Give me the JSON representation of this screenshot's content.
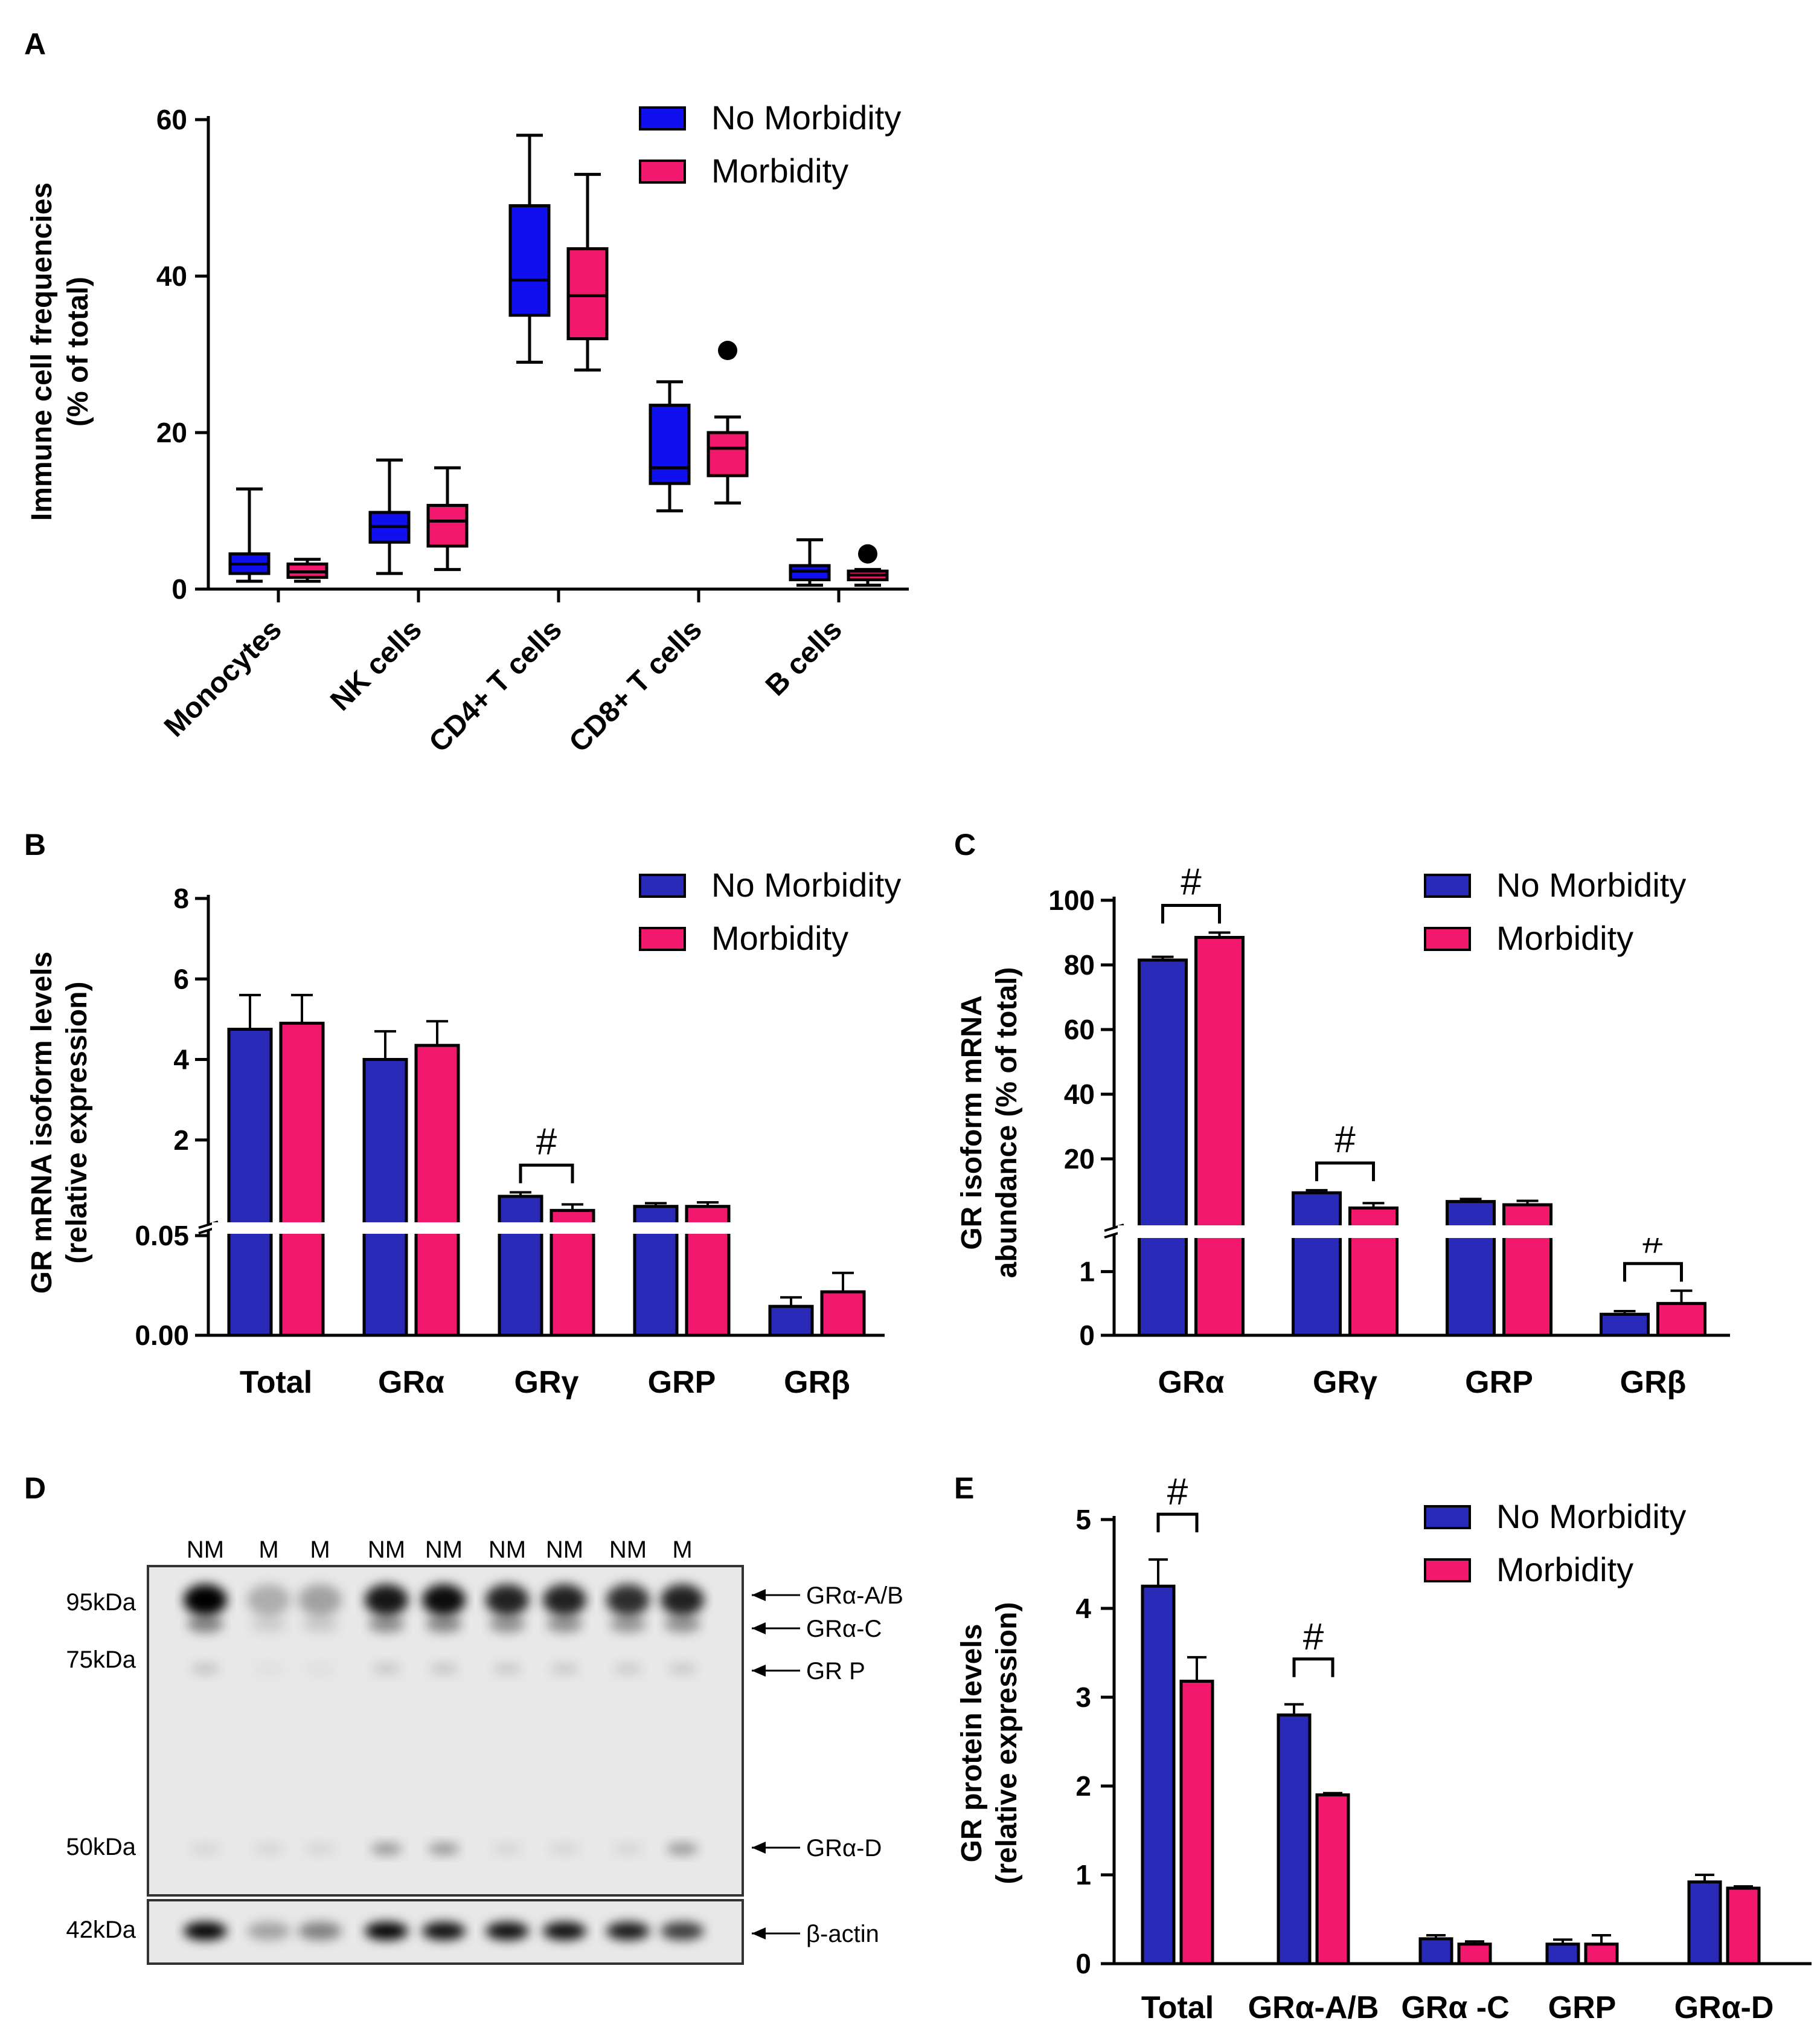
{
  "colors": {
    "no_morbidity_box": "#1010ee",
    "no_morbidity_bar": "#2a2ab8",
    "morbidity": "#f2186e",
    "axis": "#000000",
    "blot_bg": "#e8e8e8"
  },
  "legend": {
    "no_morbidity": "No Morbidity",
    "morbidity": "Morbidity"
  },
  "chart_data": [
    {
      "panel": "A",
      "type": "box",
      "ylabel": [
        "Immune cell frequencies",
        "(% of total)"
      ],
      "yticks": [
        "0",
        "20",
        "40",
        "60"
      ],
      "ylim": [
        0,
        60
      ],
      "categories": [
        "Monocytes",
        "NK cells",
        "CD4+ T cells",
        "CD8+ T cells",
        "B cells"
      ],
      "series": [
        {
          "name": "No Morbidity",
          "boxes": [
            {
              "min": 1,
              "q1": 2,
              "median": 3.2,
              "q3": 4.5,
              "max": 12.8
            },
            {
              "min": 2,
              "q1": 6,
              "median": 8,
              "q3": 9.8,
              "max": 16.5
            },
            {
              "min": 29,
              "q1": 35,
              "median": 39.5,
              "q3": 49,
              "max": 58
            },
            {
              "min": 10,
              "q1": 13.5,
              "median": 15.5,
              "q3": 23.5,
              "max": 26.5
            },
            {
              "min": 0.5,
              "q1": 1.2,
              "median": 2.3,
              "q3": 3,
              "max": 6.3
            }
          ]
        },
        {
          "name": "Morbidity",
          "boxes": [
            {
              "min": 1,
              "q1": 1.5,
              "median": 2.2,
              "q3": 3.2,
              "max": 3.8
            },
            {
              "min": 2.5,
              "q1": 5.5,
              "median": 8.7,
              "q3": 10.7,
              "max": 15.5
            },
            {
              "min": 28,
              "q1": 32,
              "median": 37.5,
              "q3": 43.5,
              "max": 53
            },
            {
              "min": 11,
              "q1": 14.5,
              "median": 18,
              "q3": 20,
              "max": 22,
              "outliers": [
                30.5
              ]
            },
            {
              "min": 0.5,
              "q1": 1.2,
              "median": 1.8,
              "q3": 2.3,
              "max": 2.5,
              "outliers": [
                4.5
              ]
            }
          ]
        }
      ]
    },
    {
      "panel": "B",
      "type": "bar",
      "ylabel": [
        "GR mRNA isoform levels",
        "(relative expression)"
      ],
      "upper_ticks": [
        "2",
        "4",
        "6",
        "8"
      ],
      "lower_ticks": [
        "0.00",
        "0.05"
      ],
      "categories": [
        "Total",
        "GRα",
        "GRγ",
        "GRP",
        "GRβ"
      ],
      "significance": [
        "",
        "",
        "#",
        "",
        ""
      ],
      "series": [
        {
          "name": "No Morbidity",
          "values": [
            4.75,
            4.0,
            0.6,
            0.35,
            0.0145
          ],
          "errors": [
            0.85,
            0.7,
            0.1,
            0.08,
            0.0045
          ]
        },
        {
          "name": "Morbidity",
          "values": [
            4.9,
            4.35,
            0.25,
            0.35,
            0.0218
          ],
          "errors": [
            0.7,
            0.6,
            0.15,
            0.1,
            0.0095
          ]
        }
      ]
    },
    {
      "panel": "C",
      "type": "bar",
      "ylabel": [
        "GR isoform mRNA",
        "abundance (% of total)"
      ],
      "upper_ticks": [
        "20",
        "40",
        "60",
        "80",
        "100"
      ],
      "lower_ticks": [
        "0",
        "1"
      ],
      "categories": [
        "GRα",
        "GRγ",
        "GRP",
        "GRβ"
      ],
      "significance": [
        "#",
        "#",
        "",
        "#"
      ],
      "series": [
        {
          "name": "No Morbidity",
          "values": [
            81.5,
            9.5,
            6.8,
            0.33
          ],
          "errors": [
            1,
            0.8,
            0.8,
            0.05
          ]
        },
        {
          "name": "Morbidity",
          "values": [
            88.5,
            4.8,
            5.8,
            0.5
          ],
          "errors": [
            1.5,
            1.5,
            1.2,
            0.2
          ]
        }
      ]
    },
    {
      "panel": "D",
      "type": "western_blot",
      "lanes": [
        "NM",
        "M",
        "M",
        "NM",
        "NM",
        "NM",
        "NM",
        "NM",
        "M"
      ],
      "markers": [
        "95kDa",
        "75kDa",
        "50kDa",
        "42kDa"
      ],
      "bands": [
        "GRα-A/B",
        "GRα-C",
        "GR P",
        "GRα-D",
        "β-actin"
      ],
      "band_intensity_rel": {
        "GRα-A/B": [
          1,
          0.25,
          0.3,
          0.9,
          0.95,
          0.85,
          0.85,
          0.8,
          0.85
        ],
        "β-actin": [
          1,
          0.3,
          0.45,
          1,
          0.95,
          0.95,
          0.95,
          0.9,
          0.75
        ]
      }
    },
    {
      "panel": "E",
      "type": "bar",
      "ylabel": [
        "GR protein levels",
        "(relative expression)"
      ],
      "yticks": [
        "0",
        "1",
        "2",
        "3",
        "4",
        "5"
      ],
      "ylim": [
        0,
        5
      ],
      "categories": [
        "Total",
        "GRα-A/B",
        "GRα -C",
        "GRP",
        "GRα-D"
      ],
      "significance": [
        "#",
        "#",
        "",
        "",
        ""
      ],
      "series": [
        {
          "name": "No Morbidity",
          "values": [
            4.25,
            2.8,
            0.28,
            0.22,
            0.92
          ],
          "errors": [
            0.3,
            0.12,
            0.04,
            0.05,
            0.08
          ]
        },
        {
          "name": "Morbidity",
          "values": [
            3.18,
            1.9,
            0.22,
            0.22,
            0.85
          ],
          "errors": [
            0.27,
            0.02,
            0.03,
            0.1,
            0.02
          ]
        }
      ]
    }
  ],
  "panels": {
    "A": "A",
    "B": "B",
    "C": "C",
    "D": "D",
    "E": "E"
  }
}
